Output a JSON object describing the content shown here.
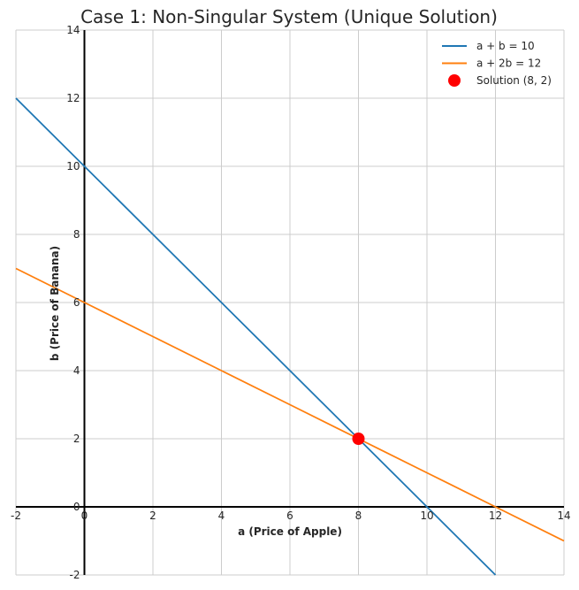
{
  "chart_data": {
    "type": "line",
    "title": "Case 1: Non-Singular System (Unique Solution)",
    "xlabel": "a (Price of Apple)",
    "ylabel": "b (Price of Banana)",
    "xlim": [
      -2,
      14
    ],
    "ylim": [
      -2,
      14
    ],
    "xticks": [
      -2,
      0,
      2,
      4,
      6,
      8,
      10,
      12,
      14
    ],
    "yticks": [
      -2,
      0,
      2,
      4,
      6,
      8,
      10,
      12,
      14
    ],
    "grid": true,
    "legend_position": "top-right",
    "series": [
      {
        "name": "a + b = 10",
        "color": "#1f77b4",
        "x": [
          -2,
          0,
          2,
          4,
          6,
          8,
          10,
          12
        ],
        "y": [
          12,
          10,
          8,
          6,
          4,
          2,
          0,
          -2
        ]
      },
      {
        "name": "a + 2b = 12",
        "color": "#ff7f0e",
        "x": [
          -2,
          0,
          2,
          4,
          6,
          8,
          10,
          12,
          14
        ],
        "y": [
          7,
          6,
          5,
          4,
          3,
          2,
          1,
          0,
          -1
        ]
      }
    ],
    "points": [
      {
        "name": "Solution (8, 2)",
        "x": 8,
        "y": 2,
        "color": "#ff0000"
      }
    ]
  }
}
